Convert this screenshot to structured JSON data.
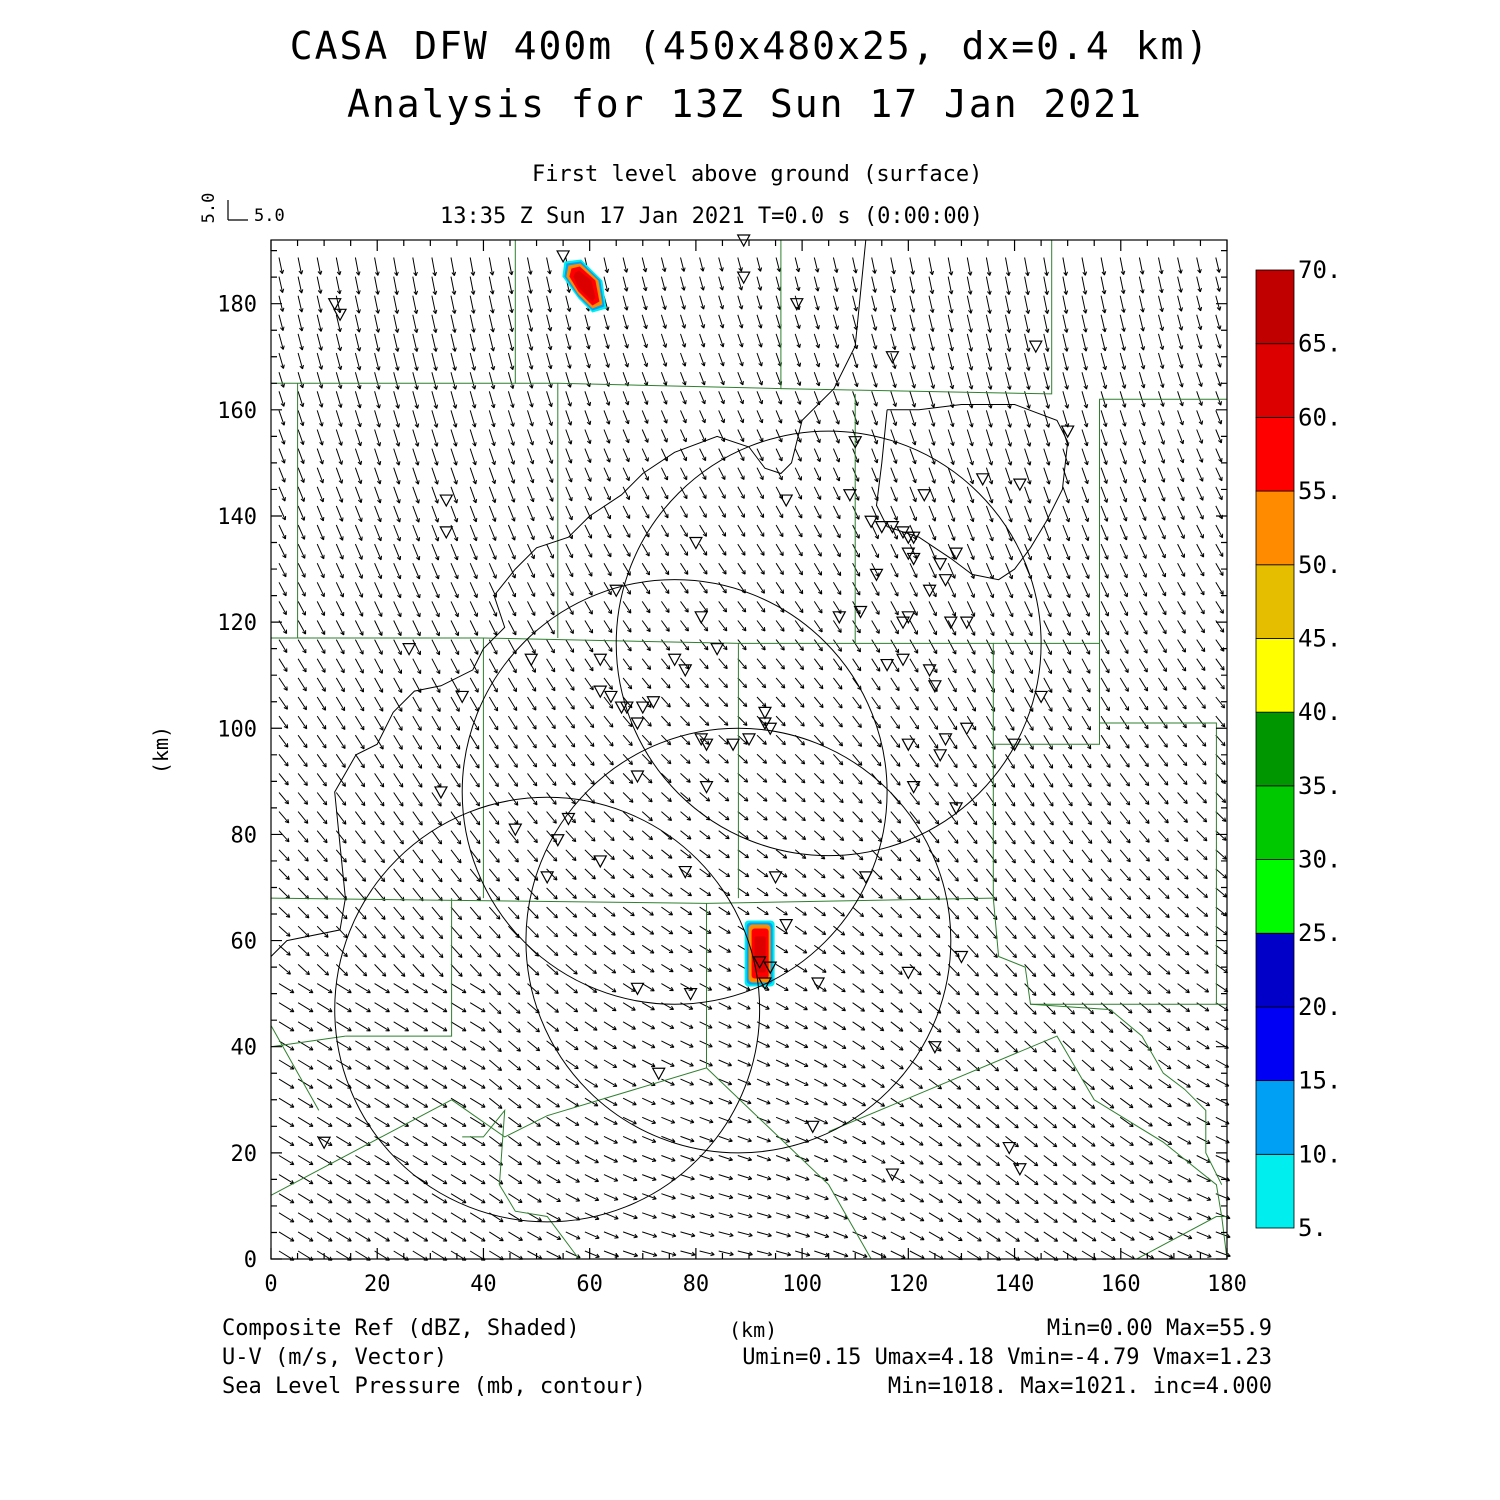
{
  "title_line1": "CASA DFW 400m (450x480x25, dx=0.4 km)",
  "title_line2": "Analysis for 13Z Sun 17 Jan 2021",
  "subtitle_level": "First level above ground (surface)",
  "subtitle_time": "13:35 Z Sun 17 Jan 2021   T=0.0 s (0:00:00)",
  "vector_key": {
    "u_label": "5.0",
    "v_label": "5.0"
  },
  "axes": {
    "xlabel": "(km)",
    "ylabel": "(km)",
    "xlim": [
      0,
      180
    ],
    "ylim": [
      0,
      192
    ],
    "xticks": [
      "0",
      "20",
      "40",
      "60",
      "80",
      "100",
      "120",
      "140",
      "160",
      "180"
    ],
    "yticks": [
      "0",
      "20",
      "40",
      "60",
      "80",
      "100",
      "120",
      "140",
      "160",
      "180"
    ]
  },
  "colorbar": {
    "labels": [
      "5.",
      "10.",
      "15.",
      "20.",
      "25.",
      "30.",
      "35.",
      "40.",
      "45.",
      "50.",
      "55.",
      "60.",
      "65.",
      "70."
    ],
    "colors": [
      "#00eeee",
      "#00a0f5",
      "#0000f5",
      "#0000c8",
      "#00fa00",
      "#00c800",
      "#009600",
      "#ffff00",
      "#e6be00",
      "#ff8c00",
      "#ff0000",
      "#dc0000",
      "#c00000",
      "#ff00ff"
    ]
  },
  "footer": {
    "field1": "Composite Ref (dBZ, Shaded)",
    "field2": "U-V (m/s, Vector)",
    "field3": "Sea Level Pressure (mb, contour)",
    "xunit": "(km)",
    "stats1": "Min=0.00 Max=55.9",
    "stats2": "Umin=0.15 Umax=4.18 Vmin=-4.79 Vmax=1.23",
    "stats3": "Min=1018. Max=1021. inc=4.000"
  },
  "chart_data": {
    "type": "map",
    "reflectivity_cells_km": [
      {
        "x": 59,
        "y": 184,
        "max_dbz": 55
      },
      {
        "x": 92,
        "y": 57,
        "max_dbz": 55.9
      }
    ],
    "radar_range_rings_km": [
      {
        "cx": 52,
        "cy": 47,
        "r": 40
      },
      {
        "cx": 76,
        "cy": 88,
        "r": 40
      },
      {
        "cx": 88,
        "cy": 60,
        "r": 40
      },
      {
        "cx": 105,
        "cy": 116,
        "r": 40
      }
    ],
    "stations_km": [
      [
        55,
        189
      ],
      [
        89,
        192
      ],
      [
        89,
        185
      ],
      [
        12,
        180
      ],
      [
        13,
        178
      ],
      [
        99,
        180
      ],
      [
        144,
        172
      ],
      [
        117,
        170
      ],
      [
        150,
        156
      ],
      [
        110,
        154
      ],
      [
        134,
        147
      ],
      [
        141,
        146
      ],
      [
        33,
        143
      ],
      [
        97,
        143
      ],
      [
        109,
        144
      ],
      [
        123,
        144
      ],
      [
        33,
        137
      ],
      [
        80,
        135
      ],
      [
        113,
        139
      ],
      [
        115,
        138
      ],
      [
        117,
        138
      ],
      [
        119,
        137
      ],
      [
        120,
        136
      ],
      [
        121,
        136
      ],
      [
        120,
        133
      ],
      [
        121,
        132
      ],
      [
        126,
        131
      ],
      [
        129,
        133
      ],
      [
        127,
        128
      ],
      [
        65,
        126
      ],
      [
        114,
        129
      ],
      [
        124,
        126
      ],
      [
        81,
        121
      ],
      [
        107,
        121
      ],
      [
        111,
        122
      ],
      [
        120,
        121
      ],
      [
        119,
        120
      ],
      [
        128,
        120
      ],
      [
        131,
        120
      ],
      [
        26,
        115
      ],
      [
        49,
        113
      ],
      [
        62,
        113
      ],
      [
        76,
        113
      ],
      [
        78,
        111
      ],
      [
        84,
        115
      ],
      [
        116,
        112
      ],
      [
        119,
        113
      ],
      [
        124,
        111
      ],
      [
        125,
        108
      ],
      [
        36,
        106
      ],
      [
        62,
        107
      ],
      [
        64,
        106
      ],
      [
        66,
        104
      ],
      [
        67,
        104
      ],
      [
        70,
        104
      ],
      [
        72,
        105
      ],
      [
        69,
        101
      ],
      [
        93,
        103
      ],
      [
        93,
        101
      ],
      [
        94,
        100
      ],
      [
        90,
        98
      ],
      [
        81,
        98
      ],
      [
        82,
        97
      ],
      [
        87,
        97
      ],
      [
        131,
        100
      ],
      [
        120,
        97
      ],
      [
        127,
        98
      ],
      [
        126,
        95
      ],
      [
        145,
        106
      ],
      [
        140,
        97
      ],
      [
        32,
        88
      ],
      [
        69,
        91
      ],
      [
        82,
        89
      ],
      [
        121,
        89
      ],
      [
        129,
        85
      ],
      [
        56,
        83
      ],
      [
        46,
        81
      ],
      [
        54,
        79
      ],
      [
        62,
        75
      ],
      [
        78,
        73
      ],
      [
        52,
        72
      ],
      [
        95,
        72
      ],
      [
        112,
        72
      ],
      [
        97,
        63
      ],
      [
        130,
        57
      ],
      [
        92,
        56
      ],
      [
        94,
        55
      ],
      [
        93,
        52
      ],
      [
        69,
        51
      ],
      [
        79,
        50
      ],
      [
        103,
        52
      ],
      [
        120,
        54
      ],
      [
        125,
        40
      ],
      [
        73,
        35
      ],
      [
        102,
        25
      ],
      [
        10,
        22
      ],
      [
        139,
        21
      ],
      [
        141,
        17
      ],
      [
        117,
        16
      ]
    ],
    "county_lines_km": [
      [
        [
          0,
          165
        ],
        [
          46,
          165
        ],
        [
          46,
          192
        ]
      ],
      [
        [
          46,
          165
        ],
        [
          54,
          165
        ],
        [
          54,
          117
        ]
      ],
      [
        [
          5,
          165
        ],
        [
          5,
          117
        ]
      ],
      [
        [
          54,
          165
        ],
        [
          96,
          164
        ],
        [
          96,
          192
        ]
      ],
      [
        [
          96,
          164
        ],
        [
          147,
          163
        ],
        [
          147,
          192
        ]
      ],
      [
        [
          0,
          117
        ],
        [
          40,
          117
        ],
        [
          40,
          68
        ]
      ],
      [
        [
          40,
          117
        ],
        [
          88,
          116
        ],
        [
          88,
          68
        ]
      ],
      [
        [
          88,
          116
        ],
        [
          136,
          116
        ],
        [
          136,
          68
        ]
      ],
      [
        [
          110,
          163
        ],
        [
          110,
          116
        ]
      ],
      [
        [
          136,
          116
        ],
        [
          156,
          116
        ],
        [
          156,
          97
        ],
        [
          136,
          97
        ]
      ],
      [
        [
          156,
          116
        ],
        [
          156,
          162
        ],
        [
          180,
          162
        ]
      ],
      [
        [
          156,
          101
        ],
        [
          178,
          101
        ],
        [
          178,
          48
        ]
      ],
      [
        [
          0,
          68
        ],
        [
          82,
          67
        ]
      ],
      [
        [
          82,
          67
        ],
        [
          136,
          68
        ]
      ],
      [
        [
          136,
          68
        ],
        [
          137,
          57
        ],
        [
          142,
          55
        ],
        [
          143,
          48
        ],
        [
          180,
          48
        ]
      ],
      [
        [
          34,
          68
        ],
        [
          34,
          42
        ],
        [
          14,
          42
        ]
      ],
      [
        [
          82,
          67
        ],
        [
          82,
          36
        ],
        [
          52,
          27
        ],
        [
          44,
          23
        ],
        [
          34,
          30
        ]
      ],
      [
        [
          82,
          67
        ],
        [
          82,
          36
        ],
        [
          105,
          14
        ],
        [
          113,
          0
        ]
      ],
      [
        [
          34,
          30
        ],
        [
          0,
          12
        ]
      ],
      [
        [
          0,
          40
        ],
        [
          14,
          42
        ]
      ],
      [
        [
          0,
          44
        ],
        [
          9,
          28
        ]
      ],
      [
        [
          36,
          23
        ],
        [
          40,
          23
        ],
        [
          44,
          28
        ],
        [
          43,
          14
        ],
        [
          46,
          9
        ],
        [
          52,
          8
        ],
        [
          58,
          0
        ]
      ],
      [
        [
          105,
          24
        ],
        [
          148,
          42
        ],
        [
          155,
          30
        ],
        [
          168,
          22
        ],
        [
          173,
          18
        ],
        [
          178,
          14
        ],
        [
          179,
          8
        ],
        [
          180,
          0
        ]
      ],
      [
        [
          143,
          48
        ],
        [
          158,
          47
        ],
        [
          164,
          42
        ],
        [
          168,
          35
        ],
        [
          172,
          32
        ],
        [
          176,
          28
        ],
        [
          176,
          20
        ],
        [
          179,
          14
        ]
      ],
      [
        [
          163,
          0
        ],
        [
          178,
          8
        ],
        [
          180,
          8
        ]
      ]
    ],
    "pressure_contours_km": [
      [
        [
          0,
          57
        ],
        [
          3,
          60
        ],
        [
          13,
          62
        ],
        [
          14,
          68
        ],
        [
          13,
          78
        ],
        [
          12,
          88
        ],
        [
          16,
          95
        ],
        [
          20,
          97
        ],
        [
          23,
          103
        ],
        [
          27,
          107
        ],
        [
          32,
          108
        ],
        [
          38,
          111
        ],
        [
          40,
          115
        ],
        [
          44,
          119
        ],
        [
          42,
          125
        ],
        [
          46,
          130
        ],
        [
          50,
          134
        ],
        [
          56,
          136
        ],
        [
          60,
          140
        ],
        [
          66,
          144
        ],
        [
          70,
          148
        ],
        [
          76,
          152
        ],
        [
          84,
          155
        ],
        [
          90,
          153
        ],
        [
          93,
          149
        ],
        [
          96,
          148
        ],
        [
          98,
          150
        ],
        [
          100,
          158
        ],
        [
          106,
          164
        ],
        [
          110,
          172
        ],
        [
          111,
          182
        ],
        [
          112,
          192
        ]
      ],
      [
        [
          116,
          160
        ],
        [
          122,
          160
        ],
        [
          130,
          161
        ],
        [
          140,
          161
        ],
        [
          148,
          158
        ],
        [
          150,
          154
        ],
        [
          149,
          145
        ],
        [
          146,
          139
        ],
        [
          143,
          134
        ],
        [
          140,
          130
        ],
        [
          137,
          128
        ],
        [
          132,
          129
        ],
        [
          128,
          132
        ],
        [
          122,
          136
        ],
        [
          116,
          138
        ],
        [
          114,
          142
        ],
        [
          115,
          150
        ],
        [
          116,
          160
        ]
      ]
    ]
  }
}
